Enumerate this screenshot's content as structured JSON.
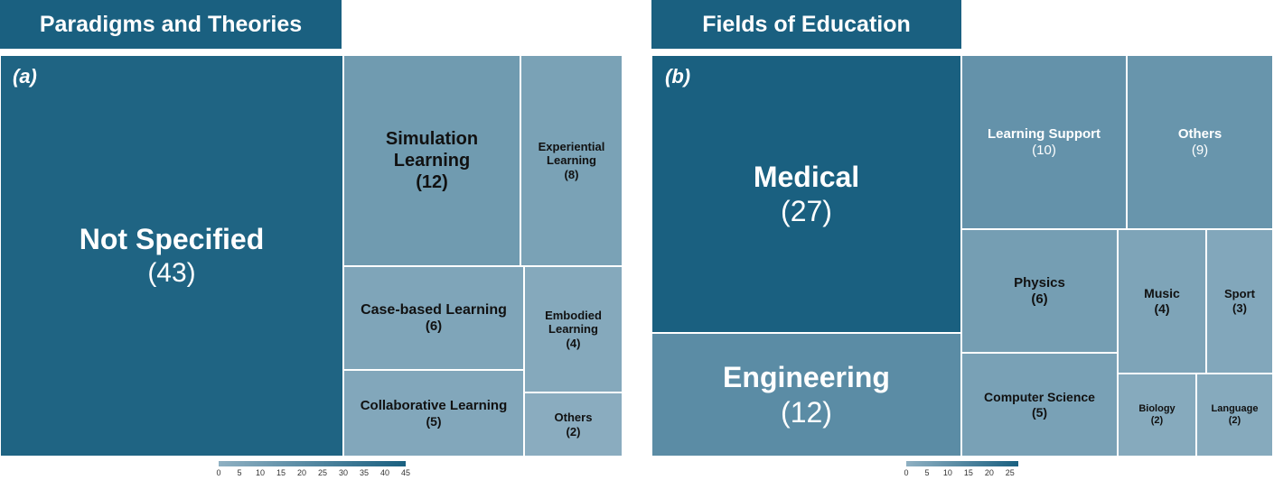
{
  "chart_data": [
    {
      "type": "treemap",
      "title": "Paradigms and Theories",
      "panel_label": "(a)",
      "items": [
        {
          "label": "Not Specified",
          "value": 43,
          "count_text": "(43)"
        },
        {
          "label": "Simulation Learning",
          "value": 12,
          "count_text": "(12)"
        },
        {
          "label": "Experiential Learning",
          "value": 8,
          "count_text": "(8)"
        },
        {
          "label": "Case-based Learning",
          "value": 6,
          "count_text": "(6)"
        },
        {
          "label": "Collaborative Learning",
          "value": 5,
          "count_text": "(5)"
        },
        {
          "label": "Embodied Learning",
          "value": 4,
          "count_text": "(4)"
        },
        {
          "label": "Others",
          "value": 2,
          "count_text": "(2)"
        }
      ],
      "legend": {
        "min": 0,
        "max": 45,
        "ticks": [
          "0",
          "5",
          "10",
          "15",
          "20",
          "25",
          "30",
          "35",
          "40",
          "45"
        ]
      }
    },
    {
      "type": "treemap",
      "title": "Fields of Education",
      "panel_label": "(b)",
      "items": [
        {
          "label": "Medical",
          "value": 27,
          "count_text": "(27)"
        },
        {
          "label": "Engineering",
          "value": 12,
          "count_text": "(12)"
        },
        {
          "label": "Learning Support",
          "value": 10,
          "count_text": "(10)"
        },
        {
          "label": "Others",
          "value": 9,
          "count_text": "(9)"
        },
        {
          "label": "Physics",
          "value": 6,
          "count_text": "(6)"
        },
        {
          "label": "Computer Science",
          "value": 5,
          "count_text": "(5)"
        },
        {
          "label": "Music",
          "value": 4,
          "count_text": "(4)"
        },
        {
          "label": "Sport",
          "value": 3,
          "count_text": "(3)"
        },
        {
          "label": "Biology",
          "value": 2,
          "count_text": "(2)"
        },
        {
          "label": "Language",
          "value": 2,
          "count_text": "(2)"
        }
      ],
      "legend": {
        "min": 0,
        "max": 27,
        "ticks": [
          "0",
          "5",
          "10",
          "15",
          "20",
          "25"
        ]
      }
    }
  ],
  "colors": {
    "high": "#1a6080",
    "low": "#8fb0c2",
    "title_bg": "#1a6080"
  }
}
